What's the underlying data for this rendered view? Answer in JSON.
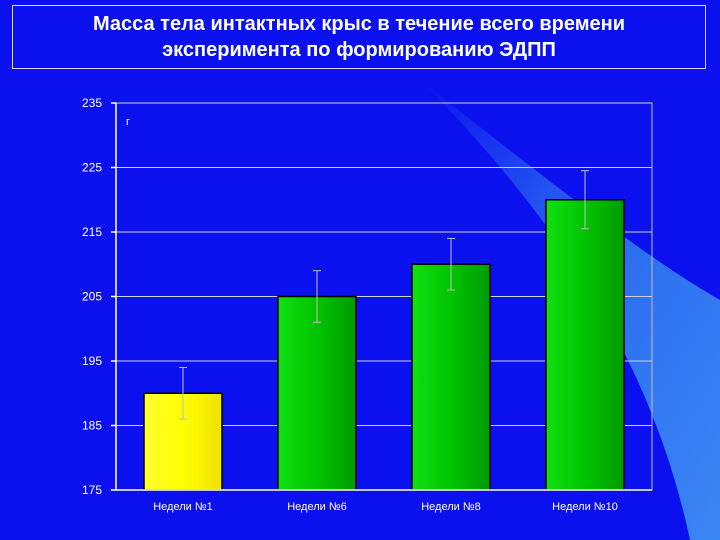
{
  "slide": {
    "title_line1": "Масса тела интактных крыс в течение всего времени",
    "title_line2": "эксперимента по формированию ЭДПП",
    "colors": {
      "background": "#0a10ee",
      "background_swoosh": "#2a74f0",
      "first_bar": "#ffff00",
      "other_bars": "#00c800",
      "text": "#ffffff"
    }
  },
  "chart_data": {
    "type": "bar",
    "title": "",
    "xlabel": "",
    "ylabel": "г",
    "categories": [
      "Недели №1",
      "Недели №6",
      "Недели №8",
      "Недели №10"
    ],
    "values": [
      190,
      205,
      210,
      220
    ],
    "error": [
      4,
      4,
      4,
      4.5
    ],
    "ylim": [
      175,
      235
    ],
    "yticks": [
      175,
      185,
      195,
      205,
      215,
      225,
      235
    ],
    "grid": true,
    "legend": "none"
  }
}
